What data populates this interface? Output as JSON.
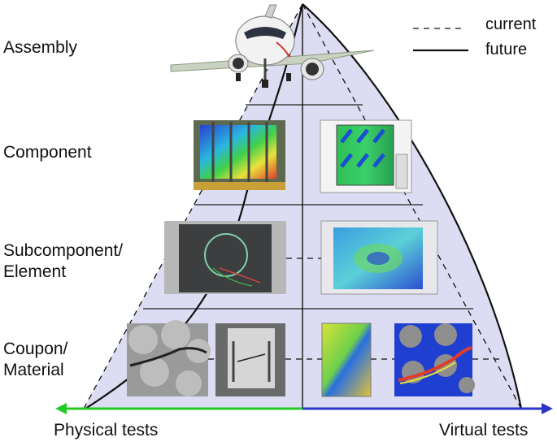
{
  "levels": {
    "assembly": "Assembly",
    "component": "Component",
    "subcomponent": [
      "Subcomponent/",
      "Element"
    ],
    "coupon": [
      "Coupon/",
      "Material"
    ]
  },
  "legend": {
    "current": "current",
    "future": "future"
  },
  "axis": {
    "physical": "Physical tests",
    "virtual": "Virtual tests"
  },
  "colors": {
    "pyramid_fill": "#dcdcf2",
    "physical_arrow": "#22cc22",
    "virtual_arrow": "#2a36c8",
    "outline": "#111111"
  },
  "icons": [
    "airplane-icon"
  ]
}
